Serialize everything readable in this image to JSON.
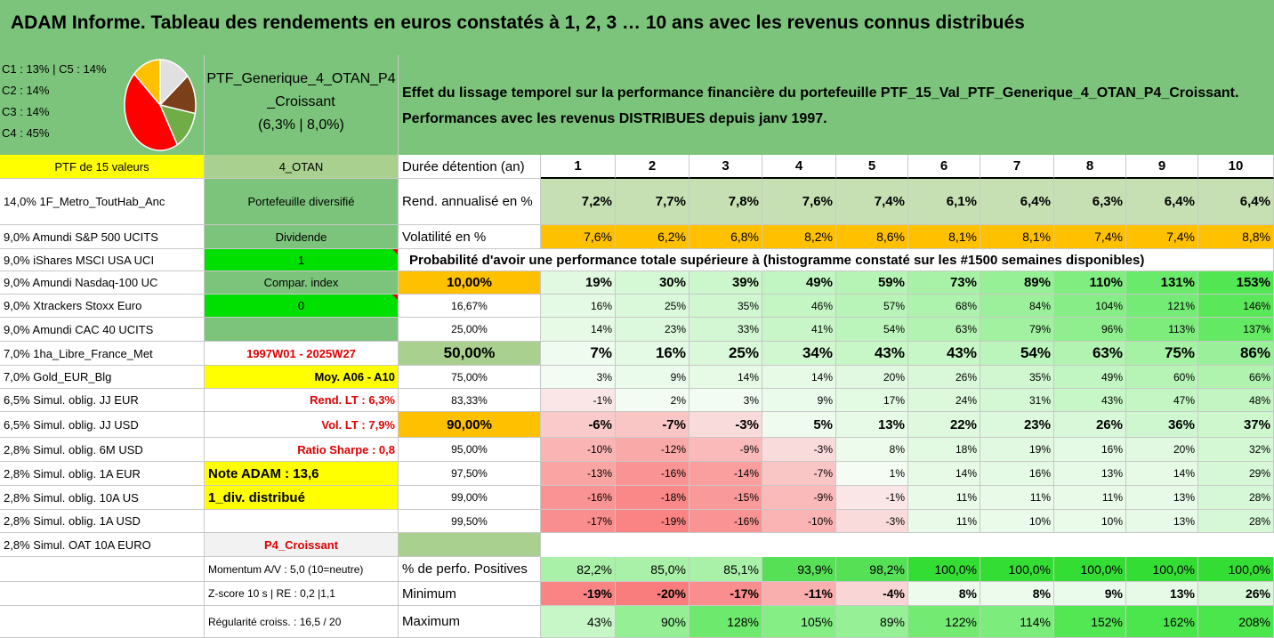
{
  "title": "ADAM Informe. Tableau des rendements en euros constatés à 1, 2, 3 … 10 ans avec les revenus connus distribués",
  "pie": {
    "labels": [
      "C1 : 13% | C5 : 14%",
      "C2 : 14%",
      "C3 : 14%",
      "C4 : 45%"
    ],
    "slices": [
      {
        "name": "C1",
        "pct": 13,
        "color": "#ffc000"
      },
      {
        "name": "C5",
        "pct": 14,
        "color": "#e0e0e0"
      },
      {
        "name": "C2",
        "pct": 14,
        "color": "#7b3f1a"
      },
      {
        "name": "C3",
        "pct": 14,
        "color": "#70ad47"
      },
      {
        "name": "C4",
        "pct": 45,
        "color": "#ff0000"
      }
    ]
  },
  "portfolio": {
    "name": "PTF_Generique_4_OTAN_P4",
    "name2": "_Croissant",
    "stats": "(6,3% | 8,0%)"
  },
  "effect_text": "Effet du lissage temporel sur la performance financière du portefeuille PTF_15_Val_PTF_Generique_4_OTAN_P4_Croissant.",
  "effect_text2": "Performances avec les revenus DISTRIBUES depuis janv 1997.",
  "col1": [
    "PTF de 15 valeurs",
    "14,0% 1F_Metro_ToutHab_Anc",
    "9,0% Amundi S&P 500 UCITS",
    "9,0% iShares MSCI USA UCI",
    "9,0% Amundi Nasdaq-100 UC",
    "9,0% Xtrackers Stoxx Euro",
    "9,0% Amundi CAC 40 UCITS",
    "7,0% 1ha_Libre_France_Met",
    "7,0% Gold_EUR_Blg",
    "6,5% Simul. oblig. JJ EUR",
    "6,5% Simul. oblig. JJ USD",
    "2,8% Simul. oblig. 6M USD",
    "2,8% Simul. oblig. 1A EUR",
    "2,8% Simul. oblig. 10A US",
    "2,8% Simul. oblig. 1A USD",
    "2,8% Simul. OAT 10A EURO"
  ],
  "col2": [
    "4_OTAN",
    "Portefeuille diversifié",
    "Dividende",
    "1",
    "Compar. index",
    "0",
    "",
    "1997W01 - 2025W27",
    "Moy. A06 - A10",
    "Rend. LT : 6,3%",
    "Vol. LT : 7,9%",
    "Ratio Sharpe : 0,8",
    "Note ADAM : 13,6",
    "1_div. distribué",
    "",
    "P4_Croissant"
  ],
  "row_labels": {
    "duree": "Durée détention (an)",
    "rend": "Rend. annualisé en %",
    "vol": "Volatilité en %",
    "proba": "Probabilité d'avoir une performance totale supérieure à (histogramme constaté sur les #1500 semaines disponibles)",
    "pos": "% de perfo. Positives",
    "min": "Minimum",
    "max": "Maximum"
  },
  "years": [
    "1",
    "2",
    "3",
    "4",
    "5",
    "6",
    "7",
    "8",
    "9",
    "10"
  ],
  "rend": [
    "7,2%",
    "7,7%",
    "7,8%",
    "7,6%",
    "7,4%",
    "6,1%",
    "6,4%",
    "6,3%",
    "6,4%",
    "6,4%"
  ],
  "vol": [
    "7,6%",
    "6,2%",
    "6,8%",
    "8,2%",
    "8,6%",
    "8,1%",
    "8,1%",
    "7,4%",
    "7,4%",
    "8,8%"
  ],
  "prob_rows": [
    {
      "p": "10,00%",
      "v": [
        "19%",
        "30%",
        "39%",
        "49%",
        "59%",
        "73%",
        "89%",
        "110%",
        "131%",
        "153%"
      ]
    },
    {
      "p": "16,67%",
      "v": [
        "16%",
        "25%",
        "35%",
        "46%",
        "57%",
        "68%",
        "84%",
        "104%",
        "121%",
        "146%"
      ]
    },
    {
      "p": "25,00%",
      "v": [
        "14%",
        "23%",
        "33%",
        "41%",
        "54%",
        "63%",
        "79%",
        "96%",
        "113%",
        "137%"
      ]
    },
    {
      "p": "50,00%",
      "v": [
        "7%",
        "16%",
        "25%",
        "34%",
        "43%",
        "43%",
        "54%",
        "63%",
        "75%",
        "86%"
      ]
    },
    {
      "p": "75,00%",
      "v": [
        "3%",
        "9%",
        "14%",
        "14%",
        "20%",
        "26%",
        "35%",
        "49%",
        "60%",
        "66%"
      ]
    },
    {
      "p": "83,33%",
      "v": [
        "-1%",
        "2%",
        "3%",
        "9%",
        "17%",
        "24%",
        "31%",
        "43%",
        "47%",
        "48%"
      ]
    },
    {
      "p": "90,00%",
      "v": [
        "-6%",
        "-7%",
        "-3%",
        "5%",
        "13%",
        "22%",
        "23%",
        "26%",
        "36%",
        "37%"
      ]
    },
    {
      "p": "95,00%",
      "v": [
        "-10%",
        "-12%",
        "-9%",
        "-3%",
        "8%",
        "18%",
        "19%",
        "16%",
        "20%",
        "32%"
      ]
    },
    {
      "p": "97,50%",
      "v": [
        "-13%",
        "-16%",
        "-14%",
        "-7%",
        "1%",
        "14%",
        "16%",
        "13%",
        "14%",
        "29%"
      ]
    },
    {
      "p": "99,00%",
      "v": [
        "-16%",
        "-18%",
        "-15%",
        "-9%",
        "-1%",
        "11%",
        "11%",
        "11%",
        "13%",
        "28%"
      ]
    },
    {
      "p": "99,50%",
      "v": [
        "-17%",
        "-19%",
        "-16%",
        "-10%",
        "-3%",
        "11%",
        "10%",
        "10%",
        "13%",
        "28%"
      ]
    }
  ],
  "bottom_labels": [
    "Momentum A/V : 5,0 (10=neutre)",
    "Z-score 10 s | RE : 0,2 |1,1",
    "Régularité croiss. : 16,5 / 20"
  ],
  "pos": [
    "82,2%",
    "85,0%",
    "85,1%",
    "93,9%",
    "98,2%",
    "100,0%",
    "100,0%",
    "100,0%",
    "100,0%",
    "100,0%"
  ],
  "min": [
    "-19%",
    "-20%",
    "-17%",
    "-11%",
    "-4%",
    "8%",
    "8%",
    "9%",
    "13%",
    "26%"
  ],
  "max": [
    "43%",
    "90%",
    "128%",
    "105%",
    "89%",
    "122%",
    "114%",
    "152%",
    "162%",
    "208%"
  ]
}
